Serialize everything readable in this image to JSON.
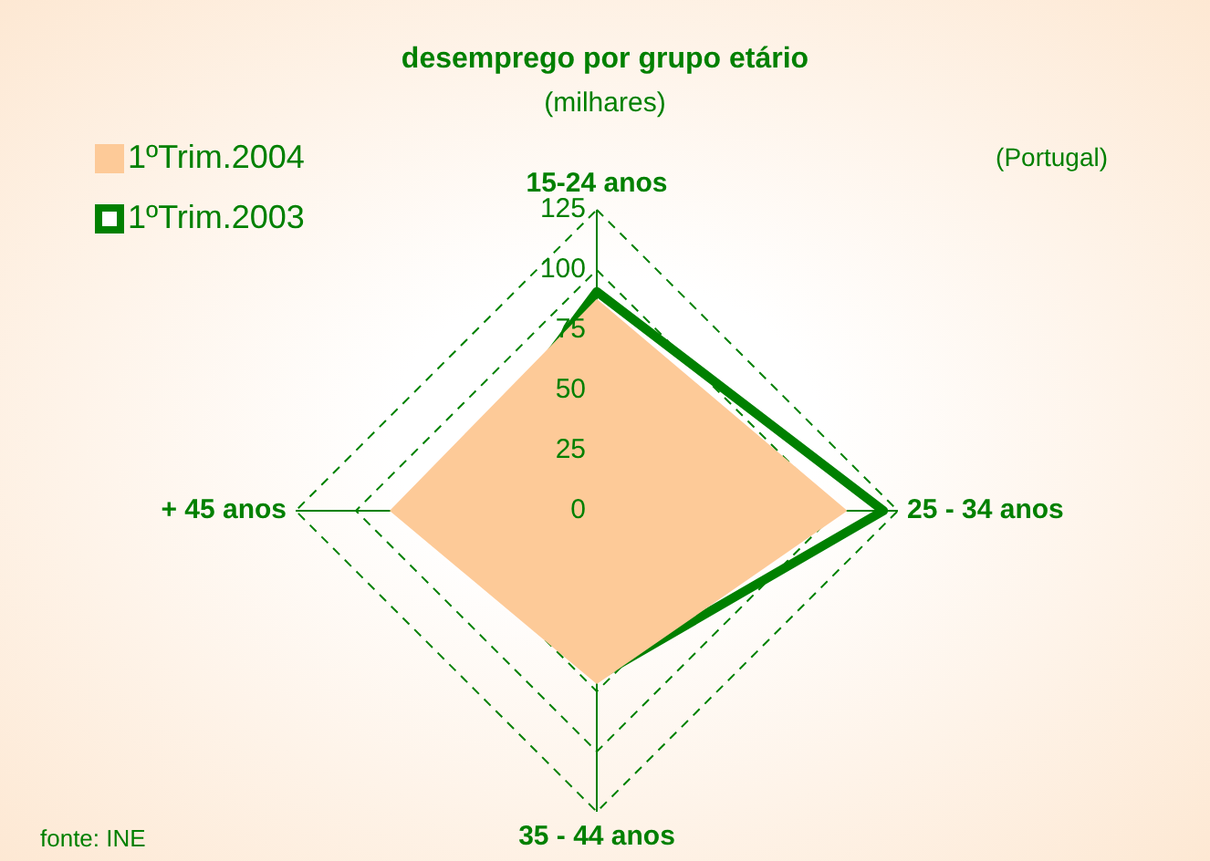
{
  "chart_data": {
    "type": "radar",
    "title": "desemprego por grupo etário",
    "subtitle": "(milhares)",
    "annotations": [
      "(Portugal)",
      "fonte: INE"
    ],
    "categories": [
      "15-24 anos",
      "25 - 34 anos",
      "35 - 44 anos",
      "+ 45 anos"
    ],
    "series": [
      {
        "name": "1ºTrim.2004",
        "color": "#fdca98",
        "type": "area",
        "values": [
          88,
          104,
          72,
          86
        ]
      },
      {
        "name": "1ºTrim.2003",
        "color": "#008000",
        "values": [
          91,
          119,
          69,
          68
        ]
      }
    ],
    "ylim": [
      0,
      125
    ],
    "yticks": [
      0,
      25,
      50,
      75,
      100,
      125
    ],
    "grid": true,
    "line_style": "dashed",
    "legend": "top left"
  }
}
